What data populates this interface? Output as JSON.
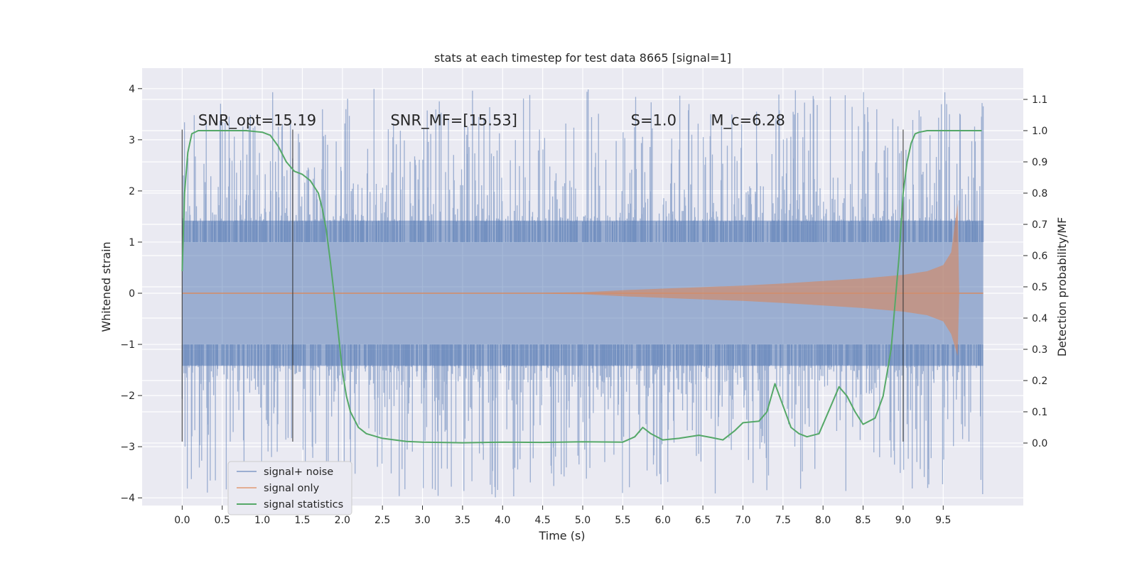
{
  "chart_data": {
    "type": "line",
    "title": "stats at each timestep for test data 8665 [signal=1]",
    "xlabel": "Time (s)",
    "ylabel_left": "Whitened strain",
    "ylabel_right": "Detection probability/MF",
    "xlim": [
      -0.5,
      10.5
    ],
    "ylim_left": [
      -4.15,
      4.4
    ],
    "ylim_right": [
      -0.2,
      1.2
    ],
    "x_ticks": [
      "0.0",
      "0.5",
      "1.0",
      "1.5",
      "2.0",
      "2.5",
      "3.0",
      "3.5",
      "4.0",
      "4.5",
      "5.0",
      "5.5",
      "6.0",
      "6.5",
      "7.0",
      "7.5",
      "8.0",
      "8.5",
      "9.0",
      "9.5"
    ],
    "y_ticks_left": [
      "4",
      "3",
      "2",
      "1",
      "0",
      "−1",
      "−2",
      "−3",
      "−4"
    ],
    "y_ticks_right": [
      "1.1",
      "1.0",
      "0.9",
      "0.8",
      "0.7",
      "0.6",
      "0.5",
      "0.4",
      "0.3",
      "0.2",
      "0.1",
      "0.0"
    ],
    "grid": true,
    "legend_position": "lower-left",
    "colors": {
      "background": "#eaeaf2",
      "grid": "#ffffff",
      "signal_noise": "#4c72b0",
      "signal_only": "#dd8452",
      "signal_statistics": "#55a868",
      "vlines": "#333333"
    },
    "series": [
      {
        "name": "signal+ noise",
        "description": "whitened noisy strain, dense noise band roughly between -1.4 and 1.4 with spikes up to about 4",
        "x_range": [
          0.0,
          10.0
        ]
      },
      {
        "name": "signal only",
        "chirp_envelope": {
          "x": [
            0.0,
            4.5,
            5.0,
            5.5,
            6.0,
            6.5,
            7.0,
            7.5,
            8.0,
            8.5,
            9.0,
            9.3,
            9.5,
            9.6,
            9.68,
            9.7,
            10.0
          ],
          "amplitude": [
            0.01,
            0.01,
            0.02,
            0.06,
            0.09,
            0.12,
            0.15,
            0.19,
            0.24,
            0.29,
            0.36,
            0.43,
            0.55,
            0.8,
            1.75,
            0.01,
            0.01
          ]
        }
      },
      {
        "name": "signal statistics",
        "x": [
          0.0,
          0.03,
          0.07,
          0.12,
          0.2,
          0.3,
          0.5,
          0.8,
          1.0,
          1.1,
          1.2,
          1.3,
          1.4,
          1.5,
          1.6,
          1.7,
          1.75,
          1.8,
          1.85,
          1.9,
          1.95,
          2.0,
          2.05,
          2.1,
          2.2,
          2.3,
          2.5,
          2.8,
          3.0,
          3.5,
          4.0,
          4.5,
          5.0,
          5.5,
          5.65,
          5.75,
          5.85,
          6.0,
          6.2,
          6.45,
          6.6,
          6.75,
          6.9,
          7.0,
          7.2,
          7.3,
          7.4,
          7.5,
          7.6,
          7.7,
          7.8,
          7.95,
          8.1,
          8.2,
          8.3,
          8.4,
          8.5,
          8.65,
          8.75,
          8.85,
          8.95,
          9.0,
          9.05,
          9.1,
          9.15,
          9.2,
          9.3,
          9.5,
          9.7,
          9.98
        ],
        "y": [
          0.55,
          0.8,
          0.93,
          0.99,
          1.0,
          1.0,
          1.0,
          1.0,
          0.995,
          0.985,
          0.95,
          0.9,
          0.87,
          0.86,
          0.84,
          0.8,
          0.75,
          0.68,
          0.58,
          0.47,
          0.35,
          0.23,
          0.15,
          0.1,
          0.05,
          0.03,
          0.015,
          0.005,
          0.003,
          0.001,
          0.003,
          0.002,
          0.004,
          0.003,
          0.02,
          0.05,
          0.03,
          0.01,
          0.015,
          0.025,
          0.018,
          0.01,
          0.04,
          0.065,
          0.07,
          0.1,
          0.19,
          0.12,
          0.05,
          0.03,
          0.02,
          0.03,
          0.12,
          0.18,
          0.15,
          0.1,
          0.06,
          0.08,
          0.15,
          0.3,
          0.6,
          0.8,
          0.9,
          0.96,
          0.99,
          0.995,
          1.0,
          1.0,
          1.0,
          1.0
        ]
      }
    ],
    "vertical_lines": [
      {
        "x": 0.0,
        "y_from": -2.9,
        "y_to": 3.2
      },
      {
        "x": 1.38,
        "y_from": -2.9,
        "y_to": 3.2
      },
      {
        "x": 9.0,
        "y_from": -2.9,
        "y_to": 3.2
      }
    ],
    "annotations": [
      {
        "text": "SNR_opt=15.19",
        "x": 0.2,
        "y": 3.28
      },
      {
        "text": "SNR_MF=[15.53]",
        "x": 2.6,
        "y": 3.28
      },
      {
        "text": "S=1.0",
        "x": 5.6,
        "y": 3.28
      },
      {
        "text": "M_c=6.28",
        "x": 6.6,
        "y": 3.28
      }
    ]
  }
}
